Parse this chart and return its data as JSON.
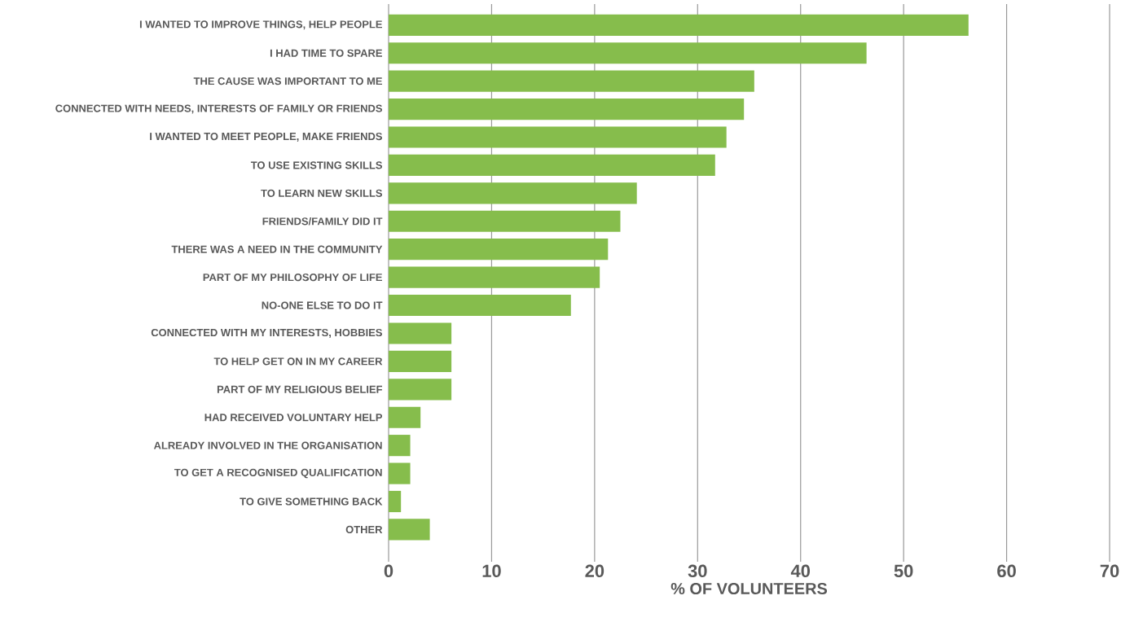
{
  "chart_data": {
    "type": "bar",
    "orientation": "horizontal",
    "xlabel": "% OF VOLUNTEERS",
    "categories": [
      "I WANTED TO IMPROVE THINGS, HELP PEOPLE",
      "I HAD TIME TO SPARE",
      "THE CAUSE WAS IMPORTANT TO ME",
      "CONNECTED WITH NEEDS, INTERESTS OF FAMILY OR FRIENDS",
      "I WANTED TO MEET PEOPLE, MAKE FRIENDS",
      "TO USE EXISTING SKILLS",
      "TO LEARN NEW SKILLS",
      "FRIENDS/FAMILY DID IT",
      "THERE WAS A NEED IN THE COMMUNITY",
      "PART OF MY PHILOSOPHY OF LIFE",
      "NO-ONE ELSE TO DO IT",
      "CONNECTED WITH MY INTERESTS, HOBBIES",
      "TO HELP GET ON IN MY CAREER",
      "PART OF MY RELIGIOUS BELIEF",
      "HAD RECEIVED VOLUNTARY HELP",
      "ALREADY INVOLVED IN THE ORGANISATION",
      "TO GET A RECOGNISED QUALIFICATION",
      "TO GIVE SOMETHING BACK",
      "OTHER"
    ],
    "values": [
      56.3,
      46.4,
      35.5,
      34.5,
      32.8,
      31.7,
      24.1,
      22.5,
      21.3,
      20.5,
      17.7,
      6.1,
      6.1,
      6.1,
      3.1,
      2.1,
      2.1,
      1.2,
      4.0
    ],
    "color": "#86bd4c",
    "xlim": [
      0,
      70
    ],
    "xticks": [
      0,
      10,
      20,
      30,
      40,
      50,
      60,
      70
    ],
    "grid": "x"
  }
}
